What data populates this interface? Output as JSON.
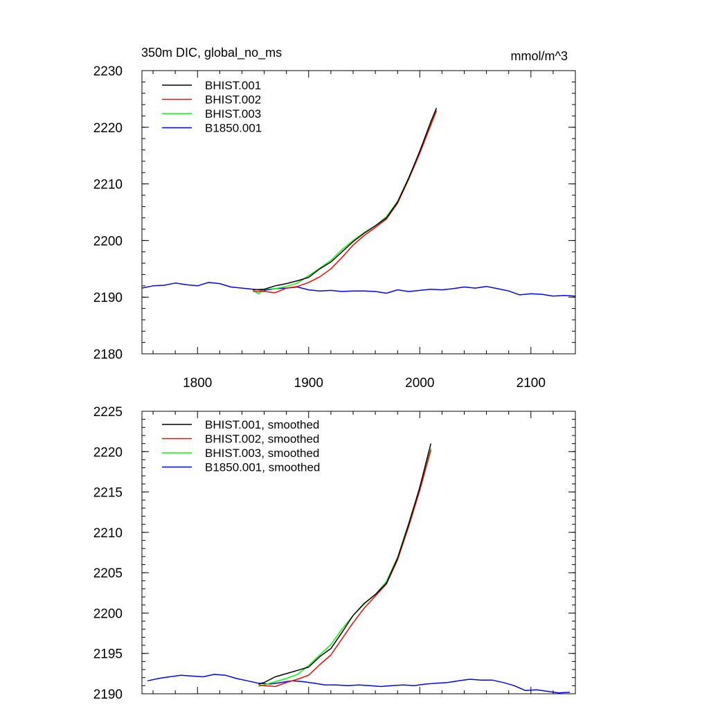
{
  "header": {
    "title": "350m DIC, global_no_ms",
    "units": "mmol/m^3"
  },
  "colors": {
    "BHIST_001": "#000000",
    "BHIST_002": "#ff0000",
    "BHIST_003": "#00ff00",
    "B1850_001": "#0000ff"
  },
  "chart_data": [
    {
      "type": "line",
      "title": "350m DIC, global_no_ms",
      "xlabel": "",
      "ylabel": "",
      "units": "mmol/m^3",
      "xlim": [
        1750,
        2140
      ],
      "ylim": [
        2180,
        2230
      ],
      "xticks": [
        1800,
        1900,
        2000,
        2100
      ],
      "yticks": [
        2180,
        2190,
        2200,
        2210,
        2220,
        2230
      ],
      "grid": false,
      "legend_position": "top-left",
      "series": [
        {
          "name": "BHIST.001",
          "color": "#000000",
          "x": [
            1850,
            1860,
            1870,
            1880,
            1890,
            1900,
            1910,
            1920,
            1930,
            1940,
            1950,
            1960,
            1970,
            1980,
            1990,
            2000,
            2010,
            2015
          ],
          "y": [
            2191.3,
            2191.4,
            2192.0,
            2192.4,
            2192.9,
            2193.5,
            2195.0,
            2196.2,
            2198.0,
            2199.8,
            2201.3,
            2202.6,
            2204.0,
            2206.8,
            2211.0,
            2215.8,
            2221.0,
            2223.4
          ]
        },
        {
          "name": "BHIST.002",
          "color": "#ff0000",
          "x": [
            1850,
            1860,
            1870,
            1880,
            1890,
            1900,
            1910,
            1920,
            1930,
            1940,
            1950,
            1960,
            1970,
            1980,
            1990,
            2000,
            2010,
            2015
          ],
          "y": [
            2191.0,
            2191.0,
            2190.8,
            2191.6,
            2191.9,
            2192.6,
            2193.6,
            2195.0,
            2197.0,
            2199.2,
            2200.9,
            2202.3,
            2203.8,
            2206.6,
            2210.8,
            2215.4,
            2220.4,
            2222.9
          ]
        },
        {
          "name": "BHIST.003",
          "color": "#00ff00",
          "x": [
            1850,
            1855,
            1860,
            1870,
            1880,
            1890,
            1900,
            1910,
            1920,
            1930,
            1940,
            1950,
            1960,
            1970,
            1980,
            1990,
            2000,
            2010,
            2015
          ],
          "y": [
            2191.2,
            2190.6,
            2191.4,
            2191.5,
            2191.9,
            2192.5,
            2193.8,
            2195.1,
            2196.5,
            2198.4,
            2200.0,
            2201.4,
            2202.6,
            2204.2,
            2206.9,
            2211.1,
            2215.6,
            2220.6,
            2223.1
          ]
        },
        {
          "name": "B1850.001",
          "color": "#0000ff",
          "x": [
            1750,
            1760,
            1770,
            1780,
            1790,
            1800,
            1810,
            1820,
            1830,
            1840,
            1850,
            1860,
            1870,
            1880,
            1890,
            1900,
            1910,
            1920,
            1930,
            1940,
            1950,
            1960,
            1970,
            1980,
            1990,
            2000,
            2010,
            2020,
            2030,
            2040,
            2050,
            2060,
            2070,
            2080,
            2090,
            2100,
            2110,
            2120,
            2130,
            2140
          ],
          "y": [
            2191.6,
            2192.0,
            2192.1,
            2192.5,
            2192.2,
            2192.0,
            2192.6,
            2192.4,
            2191.8,
            2191.6,
            2191.4,
            2191.2,
            2191.5,
            2191.6,
            2191.8,
            2191.3,
            2191.1,
            2191.2,
            2191.0,
            2191.1,
            2191.1,
            2191.0,
            2190.7,
            2191.3,
            2191.0,
            2191.2,
            2191.4,
            2191.3,
            2191.5,
            2191.8,
            2191.6,
            2191.9,
            2191.5,
            2191.1,
            2190.4,
            2190.6,
            2190.5,
            2190.2,
            2190.3,
            2190.2
          ]
        }
      ]
    },
    {
      "type": "line",
      "title": "",
      "xlabel": "",
      "ylabel": "",
      "xlim": [
        1750,
        2140
      ],
      "ylim": [
        2190,
        2225
      ],
      "xticks": [
        1800,
        1900,
        2000,
        2100
      ],
      "yticks": [
        2190,
        2195,
        2200,
        2205,
        2210,
        2215,
        2220,
        2225
      ],
      "grid": false,
      "legend_position": "top-left",
      "series": [
        {
          "name": "BHIST.001, smoothed",
          "color": "#000000",
          "x": [
            1855,
            1860,
            1870,
            1880,
            1890,
            1900,
            1910,
            1920,
            1930,
            1940,
            1950,
            1960,
            1970,
            1980,
            1990,
            2000,
            2010
          ],
          "y": [
            2191.2,
            2191.4,
            2192.1,
            2192.5,
            2192.9,
            2193.3,
            2194.6,
            2195.6,
            2197.6,
            2199.7,
            2201.2,
            2202.3,
            2203.7,
            2206.8,
            2211.0,
            2215.6,
            2221.0
          ]
        },
        {
          "name": "BHIST.002, smoothed",
          "color": "#ff0000",
          "x": [
            1855,
            1860,
            1870,
            1880,
            1890,
            1900,
            1910,
            1920,
            1930,
            1940,
            1950,
            1960,
            1970,
            1980,
            1990,
            2000,
            2010
          ],
          "y": [
            2191.1,
            2191.0,
            2190.9,
            2191.4,
            2191.8,
            2192.3,
            2193.6,
            2194.8,
            2196.8,
            2198.8,
            2200.6,
            2202.1,
            2203.6,
            2206.6,
            2210.7,
            2215.2,
            2220.2
          ]
        },
        {
          "name": "BHIST.003, smoothed",
          "color": "#00ff00",
          "x": [
            1855,
            1860,
            1870,
            1880,
            1890,
            1900,
            1910,
            1920,
            1930,
            1940,
            1950,
            1960,
            1970,
            1980,
            1990,
            2000,
            2010
          ],
          "y": [
            2190.9,
            2191.1,
            2191.5,
            2191.9,
            2192.4,
            2193.5,
            2194.8,
            2196.1,
            2198.0,
            2199.7,
            2201.1,
            2202.3,
            2203.9,
            2206.9,
            2211.1,
            2215.5,
            2220.4
          ]
        },
        {
          "name": "B1850.001, smoothed",
          "color": "#0000ff",
          "x": [
            1755,
            1765,
            1775,
            1785,
            1795,
            1805,
            1815,
            1825,
            1835,
            1845,
            1855,
            1865,
            1875,
            1885,
            1895,
            1905,
            1915,
            1925,
            1935,
            1945,
            1955,
            1965,
            1975,
            1985,
            1995,
            2005,
            2015,
            2025,
            2035,
            2045,
            2055,
            2065,
            2075,
            2085,
            2095,
            2105,
            2115,
            2125,
            2135
          ],
          "y": [
            2191.6,
            2191.9,
            2192.1,
            2192.3,
            2192.2,
            2192.1,
            2192.4,
            2192.3,
            2191.9,
            2191.6,
            2191.3,
            2191.2,
            2191.4,
            2191.6,
            2191.5,
            2191.3,
            2191.1,
            2191.1,
            2191.0,
            2191.1,
            2191.0,
            2190.9,
            2191.0,
            2191.1,
            2191.0,
            2191.2,
            2191.3,
            2191.4,
            2191.6,
            2191.8,
            2191.7,
            2191.7,
            2191.4,
            2191.0,
            2190.4,
            2190.5,
            2190.3,
            2190.1,
            2190.2
          ]
        }
      ]
    }
  ]
}
